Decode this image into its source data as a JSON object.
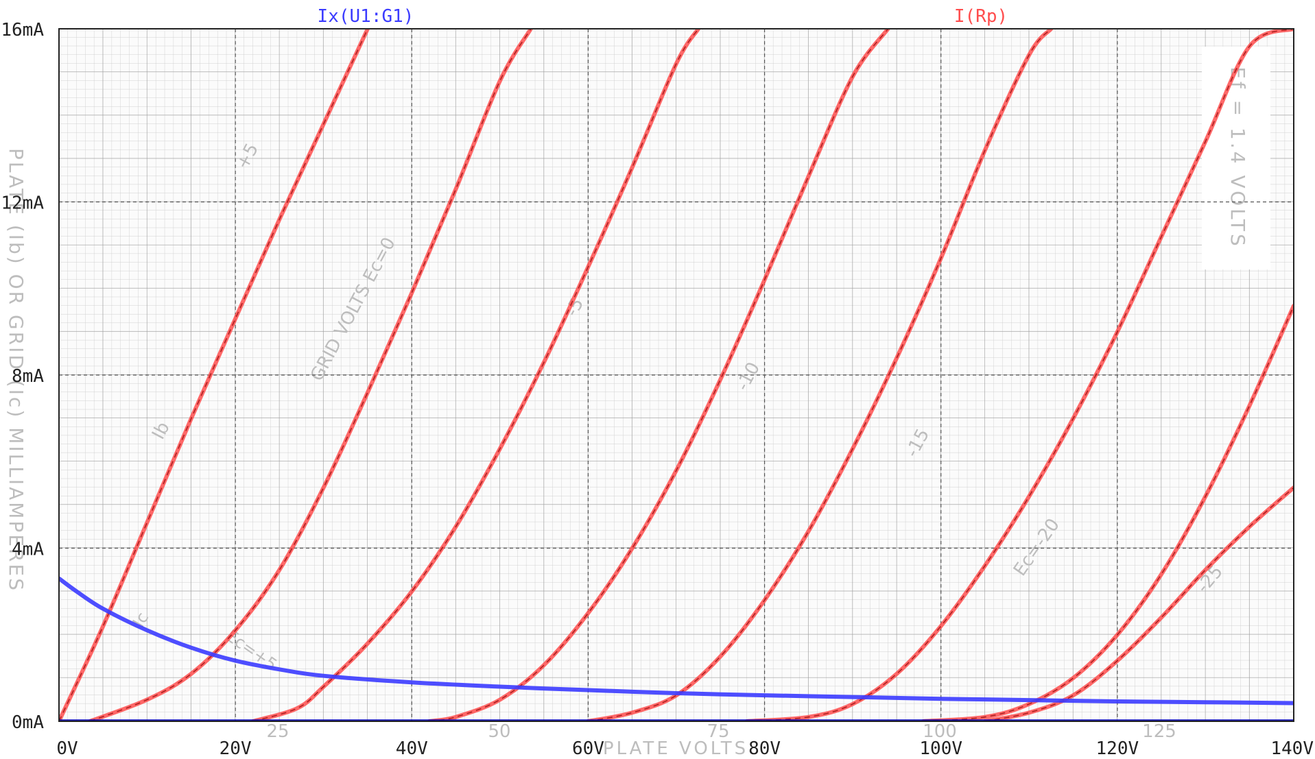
{
  "chart_data": {
    "type": "line",
    "xlabel": "",
    "ylabel": "",
    "xlim": [
      0,
      140
    ],
    "ylim": [
      0,
      16
    ],
    "x_ticks": [
      "0V",
      "20V",
      "40V",
      "60V",
      "80V",
      "100V",
      "120V",
      "140V"
    ],
    "y_ticks": [
      "0mA",
      "4mA",
      "8mA",
      "12mA",
      "16mA"
    ],
    "traces": [
      {
        "label": "Ix(U1:G1)",
        "color": "#3b3bff"
      },
      {
        "label": "I(Rp)",
        "color": "#ff4d4d"
      }
    ],
    "series": [
      {
        "trace": "I(Rp)",
        "color": "#ff4d4d",
        "x": [
          0,
          5,
          10,
          15,
          20,
          25,
          30,
          35
        ],
        "y": [
          0,
          2.2,
          4.6,
          7.0,
          9.3,
          11.6,
          13.8,
          16.0
        ]
      },
      {
        "trace": "I(Rp)",
        "color": "#ff4d4d",
        "x": [
          3.5,
          10,
          15,
          20,
          25,
          30,
          35,
          40,
          45,
          50,
          53.5
        ],
        "y": [
          0,
          0.5,
          1.1,
          2.1,
          3.5,
          5.4,
          7.6,
          9.9,
          12.3,
          14.8,
          16.0
        ]
      },
      {
        "trace": "I(Rp)",
        "color": "#ff4d4d",
        "x": [
          22,
          27,
          30,
          35,
          40,
          45,
          50,
          55,
          60,
          65,
          70,
          72.5
        ],
        "y": [
          0,
          0.3,
          0.8,
          1.8,
          3.0,
          4.5,
          6.3,
          8.3,
          10.5,
          12.8,
          15.2,
          16.0
        ]
      },
      {
        "trace": "I(Rp)",
        "color": "#ff4d4d",
        "x": [
          42,
          45,
          50,
          55,
          60,
          65,
          70,
          75,
          80,
          85,
          90,
          94
        ],
        "y": [
          0,
          0.1,
          0.5,
          1.3,
          2.5,
          4.0,
          5.8,
          7.9,
          10.2,
          12.6,
          14.9,
          16.0
        ]
      },
      {
        "trace": "I(Rp)",
        "color": "#ff4d4d",
        "x": [
          60,
          65,
          70,
          75,
          80,
          85,
          90,
          95,
          100,
          105,
          110,
          112.5
        ],
        "y": [
          0,
          0.2,
          0.6,
          1.5,
          2.8,
          4.4,
          6.3,
          8.4,
          10.7,
          13.2,
          15.4,
          16.0
        ]
      },
      {
        "trace": "I(Rp)",
        "color": "#ff4d4d",
        "x": [
          78,
          85,
          90,
          95,
          100,
          105,
          110,
          115,
          120,
          125,
          130,
          135,
          140
        ],
        "y": [
          0,
          0.1,
          0.4,
          1.1,
          2.2,
          3.6,
          5.2,
          7.0,
          9.0,
          11.2,
          13.4,
          15.6,
          16.0
        ]
      },
      {
        "trace": "I(Rp)",
        "color": "#ff4d4d",
        "x": [
          98,
          105,
          110,
          115,
          120,
          125,
          130,
          135,
          140
        ],
        "y": [
          0,
          0.1,
          0.4,
          1.0,
          2.0,
          3.4,
          5.2,
          7.3,
          9.6
        ]
      },
      {
        "trace": "I(Rp)",
        "color": "#ff4d4d",
        "x": [
          105,
          110,
          115,
          120,
          125,
          130,
          135,
          140
        ],
        "y": [
          0,
          0.2,
          0.6,
          1.4,
          2.4,
          3.5,
          4.5,
          5.4
        ]
      },
      {
        "trace": "Ix(U1:G1)",
        "color": "#3b3bff",
        "x": [
          0,
          2,
          5,
          10,
          15,
          20,
          25,
          30,
          40,
          50,
          60,
          70,
          80,
          90,
          100,
          110,
          120,
          130,
          140
        ],
        "y": [
          3.3,
          3.0,
          2.6,
          2.1,
          1.7,
          1.4,
          1.2,
          1.05,
          0.9,
          0.8,
          0.72,
          0.65,
          0.6,
          0.56,
          0.52,
          0.49,
          0.46,
          0.44,
          0.42
        ]
      },
      {
        "trace": "Ix(U1:G1)",
        "color": "#0000b0",
        "x": [
          0,
          140
        ],
        "y": [
          0.02,
          0.02
        ]
      }
    ],
    "background_scan": {
      "labels": [
        "25",
        "50",
        "75",
        "100",
        "125",
        "PLATE VOLTS",
        "PLATE (Ib) OR GRID (Ic) MILLIAMPERES",
        "Ef = 1.4 VOLTS",
        "GRID VOLTS Ec=0",
        "+5",
        "Ib",
        "Ic",
        "Ec=+5",
        "-5",
        "-10",
        "-15",
        "Ec=-20",
        "-25"
      ]
    }
  }
}
